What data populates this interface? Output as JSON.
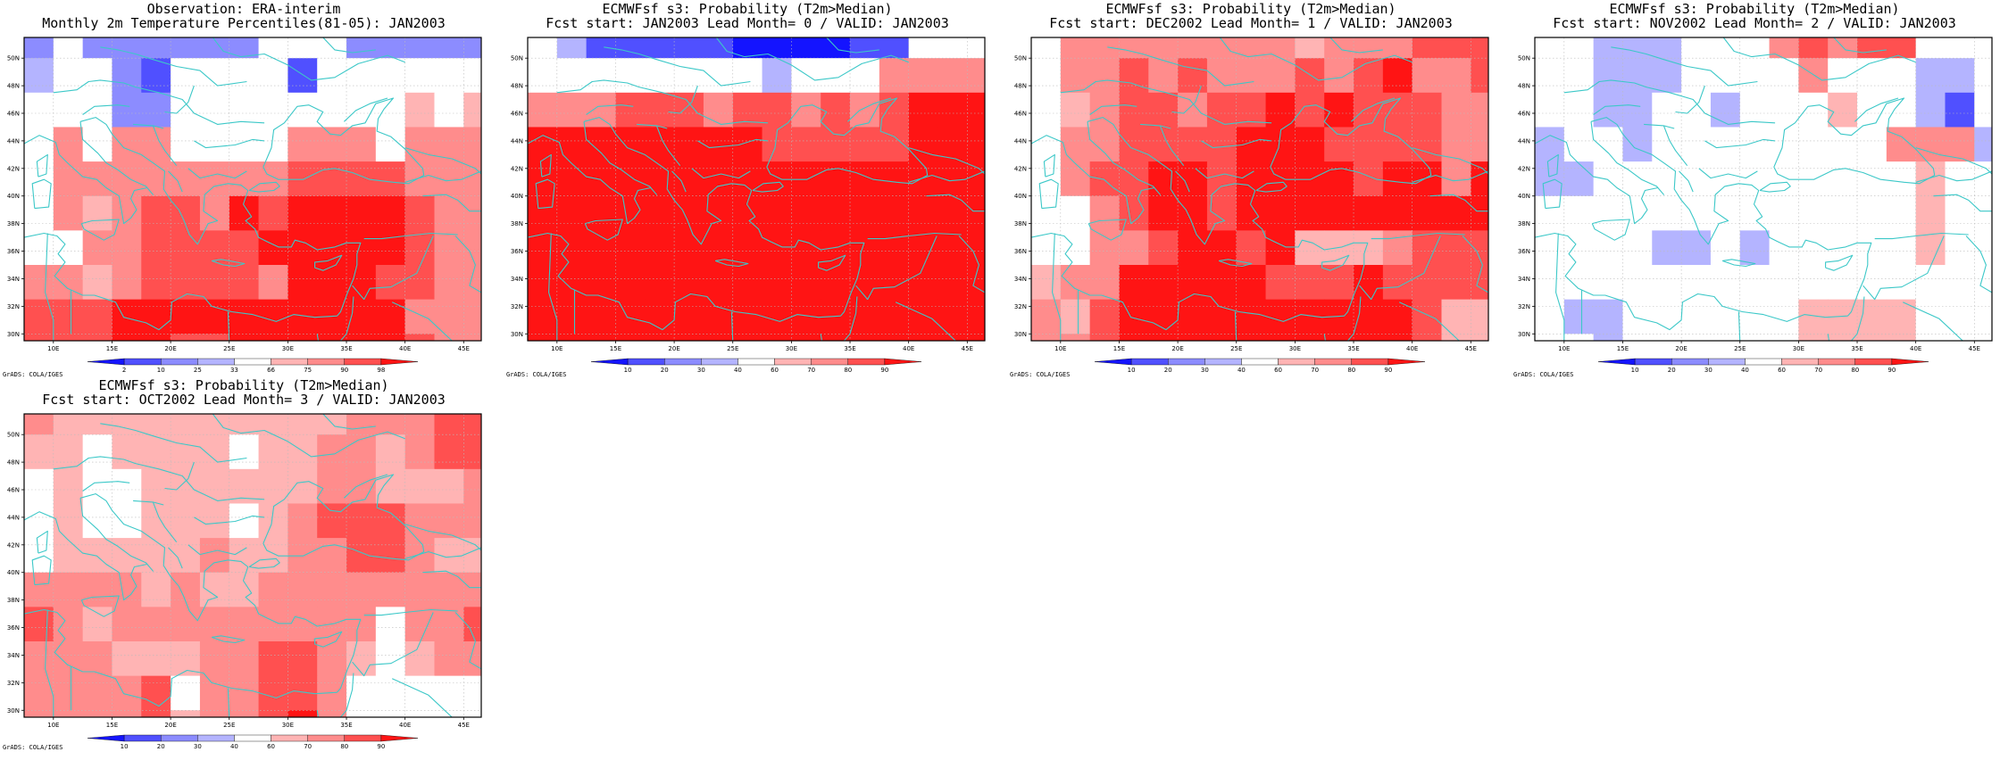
{
  "credit_text": "GrADS: COLA/IGES",
  "grid_lon_edges": [
    7.5,
    10,
    12.5,
    15,
    17.5,
    20,
    22.5,
    25,
    27.5,
    30,
    32.5,
    35,
    37.5,
    40,
    42.5,
    45,
    46.5
  ],
  "grid_lat_edges": [
    51.5,
    50,
    47.5,
    45,
    42.5,
    40,
    37.5,
    35,
    32.5,
    30,
    29.5
  ],
  "x_ticks": [
    "10E",
    "15E",
    "20E",
    "25E",
    "30E",
    "35E",
    "40E",
    "45E"
  ],
  "y_ticks": [
    "50N",
    "48N",
    "46N",
    "44N",
    "42N",
    "40N",
    "38N",
    "36N",
    "34N",
    "32N",
    "30N"
  ],
  "colors": {
    "coast": "#3cc8c8",
    "grid": "#bbbbbb",
    "palette": [
      "#1414ff",
      "#5050ff",
      "#8c8cff",
      "#b4b4ff",
      "#ffffff",
      "#ffb4b4",
      "#ff8c8c",
      "#ff5050",
      "#ff1414"
    ]
  },
  "panels": [
    {
      "title_line1": "Observation: ERA-interim",
      "title_line2": "Monthly 2m Temperature Percentiles(81-05): JAN2003",
      "colorbar_labels": [
        "2",
        "10",
        "25",
        "33",
        "66",
        "75",
        "90",
        "98"
      ],
      "grid_classes": [
        [
          2,
          4,
          2,
          2,
          2,
          2,
          2,
          2,
          4,
          4,
          4,
          2,
          2,
          2,
          2,
          2
        ],
        [
          3,
          4,
          4,
          2,
          1,
          4,
          4,
          4,
          4,
          1,
          4,
          4,
          4,
          4,
          4,
          4
        ],
        [
          4,
          4,
          4,
          2,
          2,
          4,
          4,
          4,
          4,
          4,
          4,
          4,
          4,
          5,
          4,
          5
        ],
        [
          4,
          6,
          4,
          6,
          6,
          4,
          4,
          4,
          4,
          6,
          6,
          6,
          4,
          6,
          6,
          6
        ],
        [
          4,
          6,
          6,
          6,
          6,
          6,
          6,
          6,
          6,
          7,
          7,
          7,
          7,
          6,
          6,
          6
        ],
        [
          4,
          6,
          5,
          6,
          7,
          7,
          6,
          8,
          7,
          8,
          8,
          8,
          8,
          7,
          6,
          6
        ],
        [
          4,
          4,
          6,
          6,
          7,
          7,
          7,
          7,
          8,
          8,
          8,
          8,
          8,
          7,
          6,
          6
        ],
        [
          6,
          6,
          5,
          6,
          7,
          7,
          7,
          7,
          6,
          8,
          8,
          8,
          7,
          7,
          6,
          6
        ],
        [
          7,
          7,
          7,
          8,
          8,
          8,
          8,
          8,
          8,
          8,
          8,
          8,
          8,
          6,
          6,
          6
        ],
        [
          7,
          7,
          7,
          8,
          8,
          7,
          7,
          8,
          8,
          8,
          8,
          8,
          8,
          7,
          6,
          6
        ]
      ]
    },
    {
      "title_line1": "ECMWFsf s3: Probability (T2m>Median)",
      "title_line2": "Fcst start: JAN2003  Lead Month= 0 / VALID: JAN2003",
      "colorbar_labels": [
        "10",
        "20",
        "30",
        "40",
        "60",
        "70",
        "80",
        "90"
      ],
      "grid_classes": [
        [
          4,
          3,
          1,
          1,
          1,
          1,
          1,
          0,
          0,
          0,
          0,
          1,
          1,
          4,
          4,
          4
        ],
        [
          4,
          4,
          4,
          4,
          4,
          4,
          4,
          4,
          3,
          4,
          4,
          4,
          6,
          6,
          6,
          6
        ],
        [
          6,
          6,
          6,
          7,
          7,
          7,
          6,
          7,
          7,
          6,
          7,
          6,
          7,
          8,
          8,
          8
        ],
        [
          8,
          8,
          8,
          8,
          8,
          8,
          8,
          8,
          7,
          7,
          7,
          7,
          7,
          8,
          8,
          8
        ],
        [
          8,
          8,
          8,
          8,
          8,
          8,
          8,
          8,
          8,
          8,
          8,
          8,
          8,
          8,
          8,
          8
        ],
        [
          8,
          8,
          8,
          8,
          8,
          8,
          8,
          8,
          8,
          8,
          8,
          8,
          8,
          8,
          8,
          8
        ],
        [
          8,
          8,
          8,
          8,
          8,
          8,
          8,
          8,
          8,
          8,
          8,
          8,
          8,
          8,
          8,
          8
        ],
        [
          8,
          8,
          8,
          8,
          8,
          8,
          8,
          8,
          8,
          8,
          8,
          8,
          8,
          8,
          8,
          8
        ],
        [
          8,
          8,
          8,
          8,
          8,
          8,
          8,
          8,
          8,
          8,
          8,
          8,
          8,
          8,
          8,
          8
        ],
        [
          8,
          8,
          8,
          8,
          8,
          8,
          8,
          8,
          8,
          8,
          8,
          8,
          8,
          8,
          8,
          8
        ]
      ]
    },
    {
      "title_line1": "ECMWFsf s3: Probability (T2m>Median)",
      "title_line2": "Fcst start: DEC2002  Lead Month= 1 / VALID: JAN2003",
      "colorbar_labels": [
        "10",
        "20",
        "30",
        "40",
        "60",
        "70",
        "80",
        "90"
      ],
      "grid_classes": [
        [
          4,
          6,
          6,
          6,
          6,
          6,
          6,
          6,
          6,
          5,
          6,
          6,
          6,
          7,
          7,
          7
        ],
        [
          4,
          6,
          6,
          7,
          6,
          7,
          6,
          6,
          6,
          7,
          6,
          7,
          8,
          6,
          6,
          7
        ],
        [
          4,
          5,
          6,
          7,
          7,
          6,
          7,
          7,
          8,
          7,
          8,
          7,
          7,
          7,
          6,
          6
        ],
        [
          4,
          6,
          6,
          7,
          7,
          7,
          7,
          8,
          8,
          8,
          7,
          7,
          7,
          7,
          6,
          6
        ],
        [
          4,
          6,
          7,
          7,
          8,
          8,
          7,
          8,
          8,
          8,
          8,
          7,
          8,
          8,
          6,
          8
        ],
        [
          4,
          4,
          6,
          7,
          8,
          8,
          7,
          8,
          8,
          8,
          8,
          8,
          8,
          8,
          8,
          8
        ],
        [
          4,
          4,
          6,
          6,
          7,
          8,
          8,
          7,
          8,
          5,
          5,
          5,
          6,
          7,
          7,
          7
        ],
        [
          5,
          6,
          6,
          8,
          8,
          8,
          8,
          8,
          7,
          7,
          7,
          8,
          7,
          7,
          7,
          7
        ],
        [
          6,
          5,
          7,
          8,
          8,
          8,
          8,
          8,
          8,
          8,
          8,
          8,
          8,
          7,
          5,
          5
        ],
        [
          6,
          6,
          7,
          8,
          8,
          8,
          8,
          8,
          8,
          8,
          8,
          8,
          8,
          7,
          5,
          5
        ]
      ]
    },
    {
      "title_line1": "ECMWFsf s3: Probability (T2m>Median)",
      "title_line2": "Fcst start: NOV2002  Lead Month= 2 / VALID: JAN2003",
      "colorbar_labels": [
        "10",
        "20",
        "30",
        "40",
        "60",
        "70",
        "80",
        "90"
      ],
      "grid_classes": [
        [
          4,
          4,
          3,
          3,
          3,
          4,
          4,
          4,
          6,
          7,
          6,
          7,
          7,
          4,
          4,
          4
        ],
        [
          4,
          4,
          3,
          3,
          3,
          4,
          4,
          4,
          4,
          6,
          4,
          4,
          4,
          3,
          3,
          4
        ],
        [
          4,
          4,
          3,
          3,
          4,
          4,
          3,
          4,
          4,
          4,
          5,
          4,
          4,
          3,
          1,
          4
        ],
        [
          3,
          4,
          4,
          3,
          4,
          4,
          4,
          4,
          4,
          4,
          4,
          4,
          6,
          6,
          6,
          3
        ],
        [
          3,
          3,
          4,
          4,
          4,
          4,
          4,
          4,
          4,
          4,
          4,
          4,
          4,
          5,
          4,
          4
        ],
        [
          4,
          4,
          4,
          4,
          4,
          4,
          4,
          4,
          4,
          4,
          4,
          4,
          4,
          5,
          4,
          4
        ],
        [
          4,
          4,
          4,
          4,
          3,
          3,
          4,
          3,
          4,
          4,
          4,
          4,
          4,
          5,
          4,
          4
        ],
        [
          4,
          4,
          4,
          4,
          4,
          4,
          4,
          4,
          4,
          4,
          4,
          4,
          4,
          4,
          4,
          4
        ],
        [
          4,
          3,
          3,
          4,
          4,
          4,
          4,
          4,
          4,
          5,
          5,
          5,
          5,
          4,
          4,
          4
        ],
        [
          4,
          4,
          3,
          4,
          4,
          4,
          4,
          4,
          4,
          5,
          5,
          5,
          5,
          4,
          4,
          4
        ]
      ]
    },
    {
      "title_line1": "ECMWFsf s3: Probability (T2m>Median)",
      "title_line2": "Fcst start: OCT2002  Lead Month= 3 / VALID: JAN2003",
      "colorbar_labels": [
        "10",
        "20",
        "30",
        "40",
        "60",
        "70",
        "80",
        "90"
      ],
      "grid_classes": [
        [
          6,
          5,
          5,
          5,
          5,
          5,
          5,
          5,
          5,
          5,
          5,
          6,
          6,
          6,
          7,
          7
        ],
        [
          5,
          5,
          4,
          5,
          5,
          5,
          5,
          4,
          5,
          5,
          6,
          6,
          5,
          6,
          7,
          7
        ],
        [
          4,
          5,
          4,
          4,
          5,
          5,
          5,
          5,
          5,
          5,
          6,
          6,
          5,
          5,
          5,
          6
        ],
        [
          4,
          5,
          4,
          4,
          5,
          5,
          5,
          4,
          5,
          6,
          7,
          7,
          7,
          6,
          6,
          6
        ],
        [
          4,
          5,
          5,
          5,
          5,
          5,
          6,
          5,
          5,
          6,
          6,
          7,
          7,
          6,
          5,
          5
        ],
        [
          6,
          6,
          6,
          6,
          5,
          6,
          5,
          5,
          6,
          6,
          6,
          6,
          6,
          6,
          6,
          6
        ],
        [
          7,
          6,
          5,
          6,
          6,
          6,
          6,
          6,
          6,
          6,
          6,
          6,
          4,
          6,
          6,
          7
        ],
        [
          6,
          6,
          6,
          5,
          5,
          5,
          6,
          6,
          7,
          7,
          6,
          5,
          4,
          5,
          6,
          6
        ],
        [
          6,
          6,
          6,
          6,
          7,
          4,
          6,
          6,
          7,
          7,
          6,
          4,
          4,
          4,
          4,
          4
        ],
        [
          6,
          6,
          6,
          6,
          7,
          5,
          6,
          6,
          7,
          8,
          6,
          4,
          4,
          4,
          4,
          4
        ]
      ]
    }
  ]
}
